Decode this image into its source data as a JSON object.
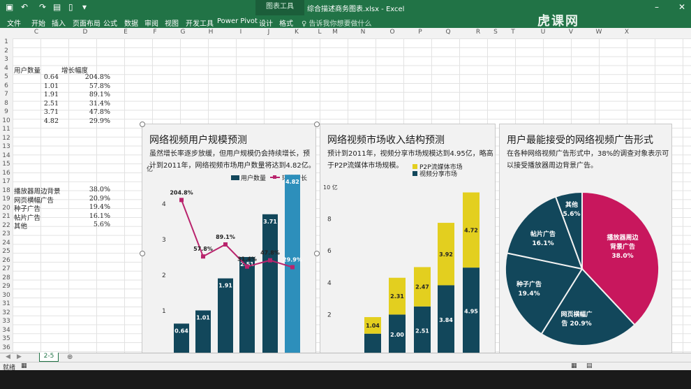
{
  "window": {
    "title": "综合描述商务图表.xlsx - Excel",
    "context_tab": "图表工具"
  },
  "ribbon": {
    "tabs": [
      "文件",
      "开始",
      "插入",
      "页面布局",
      "公式",
      "数据",
      "审阅",
      "视图",
      "开发工具",
      "Power Pivot",
      "设计",
      "格式"
    ],
    "tell_me": "♀ 告诉我你想要做什么"
  },
  "watermark": "虎课网",
  "columns": [
    "C",
    "D",
    "E",
    "F",
    "G",
    "H",
    "I",
    "J",
    "K",
    "L",
    "M",
    "N",
    "O",
    "P",
    "Q",
    "R",
    "S",
    "T",
    "U",
    "V",
    "W",
    "X"
  ],
  "rows": [
    "1",
    "2",
    "3",
    "4",
    "5",
    "6",
    "7",
    "8",
    "9",
    "10",
    "11",
    "12",
    "13",
    "14",
    "15",
    "16",
    "17",
    "18",
    "19",
    "20",
    "21",
    "22",
    "23",
    "24",
    "25",
    "26",
    "27",
    "28",
    "29",
    "30",
    "31",
    "32",
    "33",
    "34",
    "35",
    "36"
  ],
  "cells": {
    "header_users": "用户数量",
    "header_growth": "增长幅度",
    "users": [
      "0.64",
      "1.01",
      "1.91",
      "2.51",
      "3.71",
      "4.82"
    ],
    "growth": [
      "204.8%",
      "57.8%",
      "89.1%",
      "31.4%",
      "47.8%",
      "29.9%"
    ],
    "ad_names": [
      "播放器周边背景",
      "网页横幅广告",
      "种子广告",
      "帖片广告",
      "其他"
    ],
    "ad_values": [
      "38.0%",
      "20.9%",
      "19.4%",
      "16.1%",
      "5.6%"
    ]
  },
  "charts": [
    {
      "title": "网络视频用户规模预测",
      "subtitle_lines": [
        "虽然增长率逐步放缓，但用户规模仍会持续增长，预",
        "计到2011年，网络视频市场用户数量将达到4.82亿。"
      ]
    },
    {
      "title": "网络视频市场收入结构预测",
      "subtitle_lines": [
        "预计到2011年，视频分享市场规模达到4.95亿，略高",
        "于P2P流媒体市场规模。"
      ]
    },
    {
      "title": "用户最能接受的网络视频广告形式",
      "subtitle_lines": [
        "在各种网络视频广告形式中，38%的调查对象表示可",
        "以接受播放器周边背景广告。"
      ]
    }
  ],
  "chart_data": [
    {
      "type": "bar",
      "legend": [
        "用户数量",
        "环比增长"
      ],
      "y_unit": "亿",
      "yticks": [
        "1",
        "2",
        "3",
        "4"
      ],
      "ylim": [
        0,
        5
      ],
      "values": [
        0.64,
        1.01,
        1.91,
        2.51,
        3.71,
        4.82
      ],
      "value_labels": [
        "0.64",
        "1.01",
        "1.91",
        "2.51",
        "3.71",
        "4.82"
      ],
      "growth": [
        204.8,
        57.8,
        89.1,
        31.4,
        47.8,
        29.9
      ],
      "growth_labels": [
        "204.8%",
        "57.8%",
        "89.1%",
        "31.4%",
        "47.8%",
        "29.9%"
      ],
      "colors": {
        "bar": "#12475b",
        "bar_last": "#2d8fbb",
        "line": "#b9246d"
      }
    },
    {
      "type": "bar",
      "stacked": true,
      "y_unit": "亿",
      "yticks": [
        "2",
        "4",
        "6",
        "8",
        "10"
      ],
      "ylim": [
        0,
        10
      ],
      "series": [
        {
          "name": "视频分享市场",
          "values": [
            0.8,
            2.0,
            2.51,
            3.84,
            4.95
          ],
          "labels": [
            "",
            "2.00",
            "2.51",
            "3.84",
            "4.95"
          ],
          "color": "#12475b"
        },
        {
          "name": "P2P流媒体市场",
          "values": [
            1.04,
            2.31,
            2.47,
            3.92,
            4.72
          ],
          "labels": [
            "1.04",
            "2.31",
            "2.47",
            "3.92",
            "4.72"
          ],
          "color": "#e3cf1f"
        }
      ]
    },
    {
      "type": "pie",
      "slices": [
        {
          "label_lines": [
            "播放器周边",
            "背景广告",
            "38.0%"
          ],
          "value": 38.0,
          "color": "#c8175d"
        },
        {
          "label_lines": [
            "网页横幅广",
            "告 20.9%"
          ],
          "value": 20.9,
          "color": "#12475b"
        },
        {
          "label_lines": [
            "种子广告",
            "19.4%"
          ],
          "value": 19.4,
          "color": "#12475b"
        },
        {
          "label_lines": [
            "帖片广告",
            "16.1%"
          ],
          "value": 16.1,
          "color": "#12475b"
        },
        {
          "label_lines": [
            "其他",
            "5.6%"
          ],
          "value": 5.6,
          "color": "#12475b"
        }
      ]
    }
  ],
  "sheet": {
    "tab": "2-5",
    "status": "就绪"
  }
}
